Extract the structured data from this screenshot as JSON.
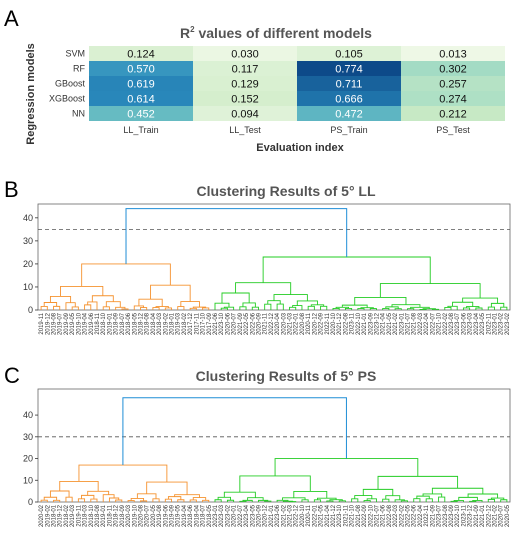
{
  "panels": {
    "a": "A",
    "b": "B",
    "c": "C"
  },
  "chart_data": [
    {
      "type": "heatmap",
      "title_main": "R",
      "title_sup": "2",
      "title_rest": " values of different models",
      "xlabel": "Evaluation index",
      "ylabel": "Regression models",
      "rows": [
        "SVM",
        "RF",
        "GBoost",
        "XGBoost",
        "NN"
      ],
      "columns": [
        "LL_Train",
        "LL_Test",
        "PS_Train",
        "PS_Test"
      ],
      "values": [
        [
          0.124,
          0.03,
          0.105,
          0.013
        ],
        [
          0.57,
          0.117,
          0.774,
          0.302
        ],
        [
          0.619,
          0.129,
          0.711,
          0.257
        ],
        [
          0.614,
          0.152,
          0.666,
          0.274
        ],
        [
          0.452,
          0.094,
          0.472,
          0.212
        ]
      ],
      "value_labels": [
        [
          "0.124",
          "0.030",
          "0.105",
          "0.013"
        ],
        [
          "0.570",
          "0.117",
          "0.774",
          "0.302"
        ],
        [
          "0.619",
          "0.129",
          "0.711",
          "0.257"
        ],
        [
          "0.614",
          "0.152",
          "0.666",
          "0.274"
        ],
        [
          "0.452",
          "0.094",
          "0.472",
          "0.212"
        ]
      ],
      "colormap": "GnBu"
    },
    {
      "type": "dendrogram",
      "title": "Clustering Results of 5° LL",
      "ylim": [
        0,
        46
      ],
      "yticks": [
        "0",
        "10",
        "20",
        "30",
        "40"
      ],
      "ytick_values": [
        0,
        10,
        20,
        30,
        40
      ],
      "threshold": 35,
      "root_height": 44,
      "cluster_colors": [
        "#f5922f",
        "#22cc22"
      ],
      "link_color": "#1f8dd6",
      "clusters": [
        {
          "leaf_count": 28,
          "height": 20
        },
        {
          "leaf_count": 48,
          "height": 23
        }
      ],
      "leaves": [
        "2019-11",
        "2019-12",
        "2019-08",
        "2019-07",
        "2019-09",
        "2019-05",
        "2019-10",
        "2019-04",
        "2019-06",
        "2018-11",
        "2018-10",
        "2019-01",
        "2018-09",
        "2018-07",
        "2018-06",
        "2018-05",
        "2018-12",
        "2018-08",
        "2018-04",
        "2018-03",
        "2019-02",
        "2018-01",
        "2019-03",
        "2018-02",
        "2017-12",
        "2017-11",
        "2017-10",
        "2017-09",
        "2021-06",
        "2023-10",
        "2020-06",
        "2020-07",
        "2021-09",
        "2022-05",
        "2022-06",
        "2020-09",
        "2021-11",
        "2022-12",
        "2020-04",
        "2020-03",
        "2021-03",
        "2022-01",
        "2020-08",
        "2020-11",
        "2020-12",
        "2022-09",
        "2022-11",
        "2020-10",
        "2021-12",
        "2022-08",
        "2023-11",
        "2022-10",
        "2021-01",
        "2023-09",
        "2023-12",
        "2021-04",
        "2021-05",
        "2021-02",
        "2023-01",
        "2021-07",
        "2021-08",
        "2022-03",
        "2022-04",
        "2022-07",
        "2021-10",
        "2022-02",
        "2023-08",
        "2023-07",
        "2023-06",
        "2023-03",
        "2023-04",
        "2023-05",
        "2022-11",
        "2023-01",
        "2023-02",
        "2023-02"
      ]
    },
    {
      "type": "dendrogram",
      "title": "Clustering Results of 5° PS",
      "ylim": [
        0,
        52
      ],
      "yticks": [
        "0",
        "10",
        "20",
        "30",
        "40"
      ],
      "ytick_values": [
        0,
        10,
        20,
        30,
        40
      ],
      "threshold": 30,
      "root_height": 48,
      "cluster_colors": [
        "#f5922f",
        "#22cc22"
      ],
      "link_color": "#1f8dd6",
      "clusters": [
        {
          "leaf_count": 28,
          "height": 17
        },
        {
          "leaf_count": 48,
          "height": 20
        }
      ],
      "leaves": [
        "2020-02",
        "2019-02",
        "2018-01",
        "2019-12",
        "2018-02",
        "2019-03",
        "2019-11",
        "2018-03",
        "2018-10",
        "2018-08",
        "2019-01",
        "2018-11",
        "2018-12",
        "2018-09",
        "2020-03",
        "2019-10",
        "2020-08",
        "2020-07",
        "2020-05",
        "2019-08",
        "2019-06",
        "2019-09",
        "2019-05",
        "2019-04",
        "2018-06",
        "2018-04",
        "2018-07",
        "2018-05",
        "2023-01",
        "2023-03",
        "2023-02",
        "2020-01",
        "2022-07",
        "2023-04",
        "2023-05",
        "2020-09",
        "2020-12",
        "2021-01",
        "2023-06",
        "2021-02",
        "2021-03",
        "2022-12",
        "2020-10",
        "2020-11",
        "2022-01",
        "2021-05",
        "2021-04",
        "2021-12",
        "2023-10",
        "2021-11",
        "2021-10",
        "2021-08",
        "2022-09",
        "2022-10",
        "2021-07",
        "2021-06",
        "2022-08",
        "2022-03",
        "2022-02",
        "2022-05",
        "2022-06",
        "2022-04",
        "2022-11",
        "2021-09",
        "2023-07",
        "2023-08",
        "2023-09",
        "2022-10",
        "2023-11",
        "2023-12",
        "2021-09",
        "2021-01",
        "2022-12",
        "2021-02",
        "2020-07",
        "2020-05"
      ]
    }
  ]
}
